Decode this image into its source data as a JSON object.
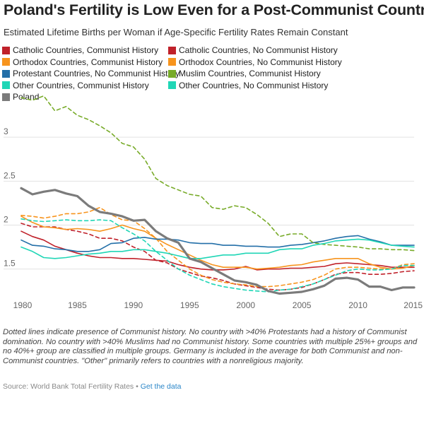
{
  "header": {
    "title": "Poland's Fertility is Low Even for a Post-Communist Country",
    "subtitle": "Estimated Lifetime Births per Woman if Age-Specific Fertility Rates Remain Constant"
  },
  "footer": {
    "note": "Dotted lines indicate presence of Communist history. No country with >40% Protestants had a history of Communist domination. No country with >40% Muslims had no Communist history. Some countries with multiple 25%+ groups and no 40%+ group are classified in multiple groups. Germany is included in the average for both Communist and non-Communist countries. \"Other\" primarily refers to countries with a nonreligious majority.",
    "source_prefix": "Source: World Bank Total Fertility Rates •",
    "source_link": "Get the data"
  },
  "chart_data": {
    "type": "line",
    "title": "Poland's Fertility is Low Even for a Post-Communist Country",
    "subtitle": "Estimated Lifetime Births per Woman if Age-Specific Fertility Rates Remain Constant",
    "xlabel": "",
    "ylabel": "",
    "xlim": [
      1980,
      2015
    ],
    "ylim": [
      1.2,
      3.5
    ],
    "x_ticks": [
      1980,
      1985,
      1990,
      1995,
      2000,
      2005,
      2010,
      2015
    ],
    "y_ticks": [
      1.5,
      2,
      2.5,
      3
    ],
    "grid": "horizontal",
    "legend_position": "top",
    "x": [
      1980,
      1981,
      1982,
      1983,
      1984,
      1985,
      1986,
      1987,
      1988,
      1989,
      1990,
      1991,
      1992,
      1993,
      1994,
      1995,
      1996,
      1997,
      1998,
      1999,
      2000,
      2001,
      2002,
      2003,
      2004,
      2005,
      2006,
      2007,
      2008,
      2009,
      2010,
      2011,
      2012,
      2013,
      2014,
      2015
    ],
    "series": [
      {
        "name": "Catholic Countries, Communist History",
        "color": "#c0212a",
        "dashed": true,
        "values": [
          2.02,
          1.98,
          1.98,
          1.98,
          1.95,
          1.93,
          1.9,
          1.85,
          1.85,
          1.82,
          1.75,
          1.7,
          1.6,
          1.57,
          1.5,
          1.46,
          1.42,
          1.4,
          1.37,
          1.33,
          1.31,
          1.29,
          1.27,
          1.26,
          1.27,
          1.29,
          1.33,
          1.38,
          1.44,
          1.46,
          1.46,
          1.44,
          1.44,
          1.45,
          1.47,
          1.48
        ]
      },
      {
        "name": "Catholic Countries, No Communist History",
        "color": "#c0212a",
        "dashed": false,
        "values": [
          1.93,
          1.87,
          1.83,
          1.76,
          1.72,
          1.68,
          1.65,
          1.63,
          1.63,
          1.62,
          1.62,
          1.61,
          1.6,
          1.59,
          1.55,
          1.52,
          1.5,
          1.49,
          1.49,
          1.5,
          1.53,
          1.49,
          1.5,
          1.5,
          1.51,
          1.51,
          1.52,
          1.53,
          1.56,
          1.57,
          1.56,
          1.55,
          1.54,
          1.52,
          1.52,
          1.52
        ]
      },
      {
        "name": "Orthodox Countries, Communist History",
        "color": "#f7941d",
        "dashed": true,
        "values": [
          2.11,
          2.1,
          2.08,
          2.1,
          2.13,
          2.13,
          2.15,
          2.2,
          2.12,
          2.06,
          2.05,
          1.96,
          1.85,
          1.7,
          1.6,
          1.5,
          1.43,
          1.38,
          1.35,
          1.33,
          1.32,
          1.3,
          1.3,
          1.31,
          1.33,
          1.35,
          1.38,
          1.43,
          1.5,
          1.52,
          1.52,
          1.51,
          1.5,
          1.5,
          1.55,
          1.56
        ]
      },
      {
        "name": "Orthodox Countries, No Communist History",
        "color": "#f7941d",
        "dashed": false,
        "values": [
          2.1,
          2.03,
          1.98,
          1.97,
          1.95,
          1.96,
          1.95,
          1.93,
          1.96,
          2.0,
          1.96,
          1.93,
          1.85,
          1.78,
          1.72,
          1.66,
          1.6,
          1.55,
          1.52,
          1.52,
          1.52,
          1.5,
          1.51,
          1.52,
          1.54,
          1.55,
          1.58,
          1.6,
          1.62,
          1.62,
          1.62,
          1.56,
          1.52,
          1.5,
          1.51,
          1.54
        ]
      },
      {
        "name": "Protestant Countries, No Communist History",
        "color": "#236fa8",
        "dashed": false,
        "values": [
          1.83,
          1.77,
          1.76,
          1.73,
          1.72,
          1.7,
          1.7,
          1.72,
          1.79,
          1.8,
          1.85,
          1.86,
          1.84,
          1.84,
          1.83,
          1.8,
          1.79,
          1.79,
          1.77,
          1.77,
          1.76,
          1.76,
          1.75,
          1.75,
          1.77,
          1.78,
          1.8,
          1.82,
          1.85,
          1.87,
          1.88,
          1.84,
          1.81,
          1.77,
          1.77,
          1.77
        ]
      },
      {
        "name": "Muslim Countries, Communist History",
        "color": "#78ab29",
        "dashed": true,
        "values": [
          3.45,
          3.42,
          3.47,
          3.3,
          3.35,
          3.25,
          3.2,
          3.13,
          3.05,
          2.93,
          2.89,
          2.75,
          2.53,
          2.45,
          2.4,
          2.35,
          2.33,
          2.2,
          2.18,
          2.22,
          2.2,
          2.12,
          2.02,
          1.87,
          1.9,
          1.9,
          1.8,
          1.78,
          1.77,
          1.76,
          1.75,
          1.73,
          1.73,
          1.72,
          1.72,
          1.71
        ]
      },
      {
        "name": "Other Countries, Communist History",
        "color": "#20d6b6",
        "dashed": true,
        "values": [
          2.07,
          2.05,
          2.04,
          2.05,
          2.06,
          2.05,
          2.05,
          2.06,
          2.05,
          1.97,
          1.9,
          1.82,
          1.7,
          1.6,
          1.5,
          1.43,
          1.38,
          1.33,
          1.3,
          1.28,
          1.26,
          1.25,
          1.24,
          1.26,
          1.27,
          1.3,
          1.33,
          1.38,
          1.43,
          1.48,
          1.5,
          1.49,
          1.49,
          1.5,
          1.54,
          1.54
        ]
      },
      {
        "name": "Other Countries, No Communist History",
        "color": "#20d6b6",
        "dashed": false,
        "values": [
          1.75,
          1.7,
          1.63,
          1.62,
          1.63,
          1.65,
          1.67,
          1.68,
          1.7,
          1.7,
          1.72,
          1.72,
          1.7,
          1.68,
          1.65,
          1.62,
          1.62,
          1.64,
          1.66,
          1.66,
          1.68,
          1.68,
          1.68,
          1.72,
          1.73,
          1.73,
          1.77,
          1.79,
          1.82,
          1.83,
          1.84,
          1.83,
          1.8,
          1.77,
          1.76,
          1.75
        ]
      },
      {
        "name": "Poland",
        "color": "#7b7b7b",
        "dashed": false,
        "values": [
          2.42,
          2.35,
          2.38,
          2.4,
          2.36,
          2.33,
          2.22,
          2.15,
          2.13,
          2.1,
          2.05,
          2.06,
          1.93,
          1.85,
          1.8,
          1.62,
          1.58,
          1.51,
          1.44,
          1.37,
          1.35,
          1.32,
          1.25,
          1.22,
          1.23,
          1.24,
          1.27,
          1.31,
          1.39,
          1.4,
          1.38,
          1.3,
          1.3,
          1.26,
          1.29,
          1.29
        ]
      }
    ]
  }
}
